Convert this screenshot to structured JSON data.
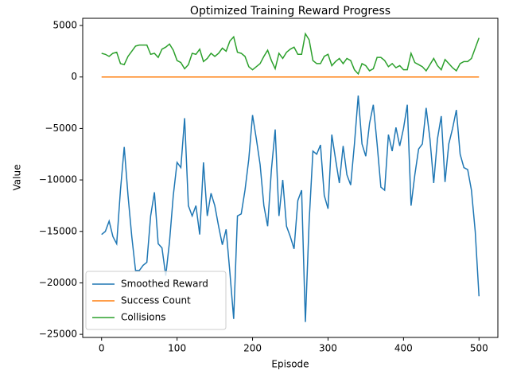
{
  "chart_data": {
    "type": "line",
    "title": "Optimized Training Reward Progress",
    "x_label": "Episode",
    "y_label": "Value",
    "x": [
      0,
      5,
      10,
      15,
      20,
      25,
      30,
      35,
      40,
      45,
      50,
      55,
      60,
      65,
      70,
      75,
      80,
      85,
      90,
      95,
      100,
      105,
      110,
      115,
      120,
      125,
      130,
      135,
      140,
      145,
      150,
      155,
      160,
      165,
      170,
      175,
      180,
      185,
      190,
      195,
      200,
      205,
      210,
      215,
      220,
      225,
      230,
      235,
      240,
      245,
      250,
      255,
      260,
      265,
      270,
      275,
      280,
      285,
      290,
      295,
      300,
      305,
      310,
      315,
      320,
      325,
      330,
      335,
      340,
      345,
      350,
      355,
      360,
      365,
      370,
      375,
      380,
      385,
      390,
      395,
      400,
      405,
      410,
      415,
      420,
      425,
      430,
      435,
      440,
      445,
      450,
      455,
      460,
      465,
      470,
      475,
      480,
      485,
      490,
      495,
      500
    ],
    "series": [
      {
        "name": "Smoothed Reward",
        "color": "#1f77b4",
        "values": [
          -15300,
          -15000,
          -14000,
          -15500,
          -16200,
          -11000,
          -6800,
          -11500,
          -15500,
          -18800,
          -18800,
          -18300,
          -18000,
          -13500,
          -11200,
          -16200,
          -16600,
          -19300,
          -16000,
          -11500,
          -8300,
          -8800,
          -4000,
          -12500,
          -13500,
          -12500,
          -15300,
          -8300,
          -13500,
          -11300,
          -12500,
          -14500,
          -16300,
          -14800,
          -19000,
          -23500,
          -13500,
          -13300,
          -11000,
          -8000,
          -3700,
          -6000,
          -8500,
          -12500,
          -14500,
          -9000,
          -5100,
          -13500,
          -10000,
          -14500,
          -15500,
          -16700,
          -12000,
          -11000,
          -23800,
          -14000,
          -7200,
          -7500,
          -6600,
          -11500,
          -12800,
          -5600,
          -8000,
          -10300,
          -6700,
          -9500,
          -10500,
          -6500,
          -1800,
          -6500,
          -7700,
          -4500,
          -2700,
          -6500,
          -10700,
          -11000,
          -5600,
          -7200,
          -4900,
          -6700,
          -5000,
          -2700,
          -12500,
          -9500,
          -7000,
          -6500,
          -3000,
          -6000,
          -10300,
          -6000,
          -3800,
          -10200,
          -6500,
          -5000,
          -3200,
          -7500,
          -8800,
          -9000,
          -11000,
          -15000,
          -21300
        ]
      },
      {
        "name": "Success Count",
        "color": "#ff7f0e",
        "values": [
          0,
          0,
          0,
          0,
          0,
          0,
          0,
          0,
          0,
          0,
          0,
          0,
          0,
          0,
          0,
          0,
          0,
          0,
          0,
          0,
          0,
          0,
          0,
          0,
          0,
          0,
          0,
          0,
          0,
          0,
          0,
          0,
          0,
          0,
          0,
          0,
          0,
          0,
          0,
          0,
          0,
          0,
          0,
          0,
          0,
          0,
          0,
          0,
          0,
          0,
          0,
          0,
          0,
          0,
          0,
          0,
          0,
          0,
          0,
          0,
          0,
          0,
          0,
          0,
          0,
          0,
          0,
          0,
          0,
          0,
          0,
          0,
          0,
          0,
          0,
          0,
          0,
          0,
          0,
          0,
          0,
          0,
          0,
          0,
          0,
          0,
          0,
          0,
          0,
          0,
          0,
          0,
          0,
          0,
          0,
          0,
          0,
          0,
          0,
          0,
          0
        ]
      },
      {
        "name": "Collisions",
        "color": "#2ca02c",
        "values": [
          2300,
          2200,
          2000,
          2300,
          2400,
          1300,
          1200,
          2000,
          2500,
          3000,
          3100,
          3100,
          3100,
          2200,
          2300,
          1900,
          2700,
          2900,
          3200,
          2600,
          1600,
          1400,
          800,
          1200,
          2300,
          2200,
          2700,
          1500,
          1800,
          2300,
          2000,
          2300,
          2800,
          2500,
          3500,
          3900,
          2400,
          2300,
          2000,
          1000,
          700,
          1000,
          1300,
          2000,
          2600,
          1600,
          800,
          2300,
          1800,
          2400,
          2700,
          2900,
          2200,
          2200,
          4200,
          3600,
          1600,
          1300,
          1300,
          2000,
          2200,
          1100,
          1500,
          1800,
          1300,
          1800,
          1600,
          700,
          300,
          1300,
          1100,
          600,
          800,
          1900,
          1900,
          1600,
          1000,
          1300,
          900,
          1100,
          700,
          700,
          2300,
          1400,
          1200,
          1000,
          600,
          1200,
          1800,
          1100,
          700,
          1700,
          1300,
          900,
          600,
          1300,
          1500,
          1500,
          1800,
          2800,
          3800
        ]
      }
    ],
    "xlim": [
      -25,
      525
    ],
    "ylim": [
      -25300,
      5700
    ],
    "xticks": [
      0,
      100,
      200,
      300,
      400,
      500
    ],
    "yticks": [
      {
        "value": -25000,
        "label": "−25000"
      },
      {
        "value": -20000,
        "label": "−20000"
      },
      {
        "value": -15000,
        "label": "−15000"
      },
      {
        "value": -10000,
        "label": "−10000"
      },
      {
        "value": -5000,
        "label": "−5000"
      },
      0,
      5000
    ],
    "legend": "lower left"
  }
}
